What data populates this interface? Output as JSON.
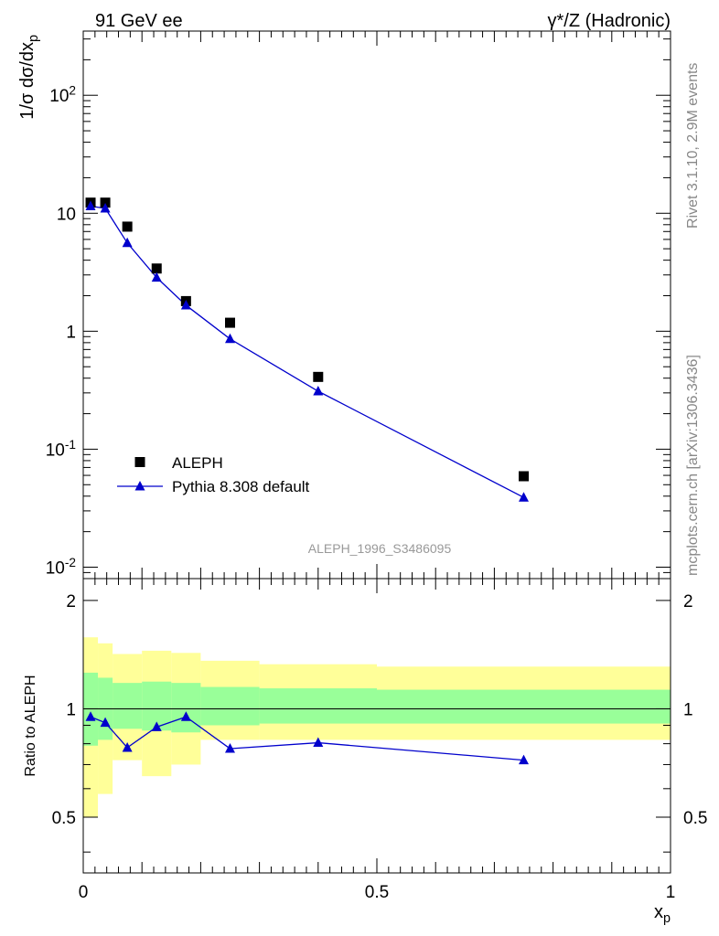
{
  "header": {
    "left_title": "91 GeV ee",
    "right_title": "γ*/Z (Hadronic)"
  },
  "side_labels": {
    "rivet": "Rivet 3.1.10,  2.9M events",
    "mcplots": "mcplots.cern.ch [arXiv:1306.3436]"
  },
  "watermark": "ALEPH_1996_S3486095",
  "chart_data": [
    {
      "type": "scatter",
      "ylabel": "1/σ dσ/dx_p",
      "y_scale": "log",
      "xlim": [
        0,
        1
      ],
      "ylim": [
        0.008,
        350
      ],
      "y_tick_labels": [
        "10^-2",
        "10^-1",
        "1",
        "10",
        "10^2"
      ],
      "legend_placement": "lower-left",
      "series": [
        {
          "name": "ALEPH",
          "marker": "square",
          "color": "#000000",
          "x": [
            0.0125,
            0.0375,
            0.075,
            0.125,
            0.175,
            0.25,
            0.4,
            0.75
          ],
          "y": [
            12.3,
            12.3,
            7.7,
            3.4,
            1.8,
            1.18,
            0.41,
            0.059
          ]
        },
        {
          "name": "Pythia 8.308 default",
          "marker": "triangle",
          "line": true,
          "color": "#0000cc",
          "x": [
            0.0125,
            0.0375,
            0.075,
            0.125,
            0.175,
            0.25,
            0.4,
            0.75
          ],
          "y": [
            11.5,
            11.0,
            5.6,
            2.85,
            1.66,
            0.86,
            0.31,
            0.039
          ]
        }
      ]
    },
    {
      "type": "line",
      "ylabel": "Ratio to ALEPH",
      "xlabel": "x_p",
      "xlim": [
        0,
        1
      ],
      "ylim": [
        0.35,
        2.3
      ],
      "x_tick_labels": [
        "0",
        "0.5",
        "1"
      ],
      "y_tick_labels": [
        "0.5",
        "1",
        "2"
      ],
      "reference_line": 1,
      "bands": {
        "edges": [
          0,
          0.025,
          0.05,
          0.1,
          0.15,
          0.2,
          0.3,
          0.5,
          1.0
        ],
        "outer_low": [
          0.5,
          0.58,
          0.72,
          0.65,
          0.7,
          0.82,
          0.82,
          0.82
        ],
        "outer_high": [
          1.58,
          1.52,
          1.42,
          1.45,
          1.43,
          1.36,
          1.33,
          1.31
        ],
        "inner_low": [
          0.79,
          0.82,
          0.88,
          0.87,
          0.86,
          0.9,
          0.91,
          0.91
        ],
        "inner_high": [
          1.26,
          1.22,
          1.18,
          1.19,
          1.18,
          1.15,
          1.14,
          1.13
        ],
        "outer_color": "#ffff99",
        "inner_color": "#99ff99"
      },
      "series": [
        {
          "name": "Pythia 8.308 default",
          "marker": "triangle",
          "color": "#0000cc",
          "x": [
            0.0125,
            0.0375,
            0.075,
            0.125,
            0.175,
            0.25,
            0.4,
            0.75
          ],
          "y": [
            0.95,
            0.915,
            0.78,
            0.89,
            0.95,
            0.775,
            0.805,
            0.72
          ]
        }
      ]
    }
  ]
}
